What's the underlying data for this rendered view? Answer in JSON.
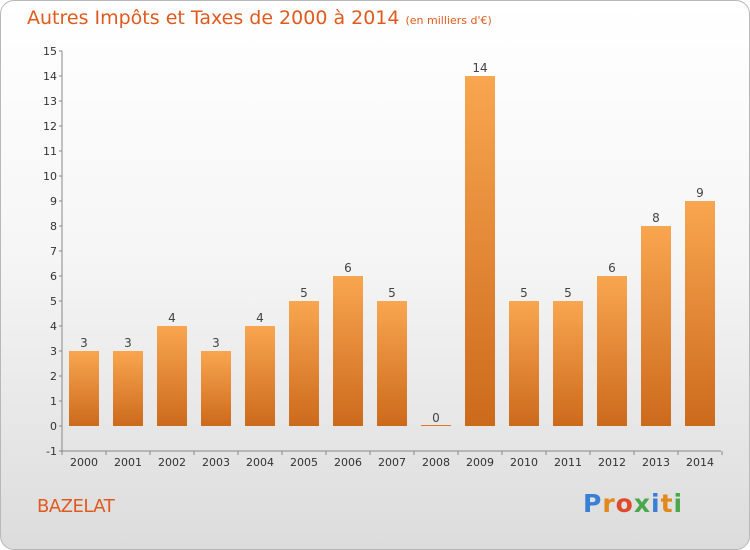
{
  "chart_data": {
    "type": "bar",
    "title": "Autres Impôts et Taxes de 2000 à 2014",
    "unit": "(en milliers d'€)",
    "categories": [
      "2000",
      "2001",
      "2002",
      "2003",
      "2004",
      "2005",
      "2006",
      "2007",
      "2008",
      "2009",
      "2010",
      "2011",
      "2012",
      "2013",
      "2014"
    ],
    "values": [
      3,
      3,
      4,
      3,
      4,
      5,
      6,
      5,
      0,
      14,
      5,
      5,
      6,
      8,
      9
    ],
    "ylim": [
      -1,
      15
    ],
    "yticks": [
      -1,
      0,
      1,
      2,
      3,
      4,
      5,
      6,
      7,
      8,
      9,
      10,
      11,
      12,
      13,
      14,
      15
    ],
    "grid": false,
    "legend": "none"
  },
  "footer": {
    "commune": "BAZELAT",
    "logo": [
      "P",
      "r",
      "o",
      "x",
      "i",
      "t",
      "i"
    ],
    "logo_colors": [
      "#3a7fd6",
      "#e2881c",
      "#e04a2a",
      "#4aa84a",
      "#3a7fd6",
      "#e2881c",
      "#4aa84a"
    ]
  },
  "colors": {
    "accent": "#e05a1e",
    "bar_light": "#f8a24c",
    "bar_dark": "#cc6a1c"
  }
}
